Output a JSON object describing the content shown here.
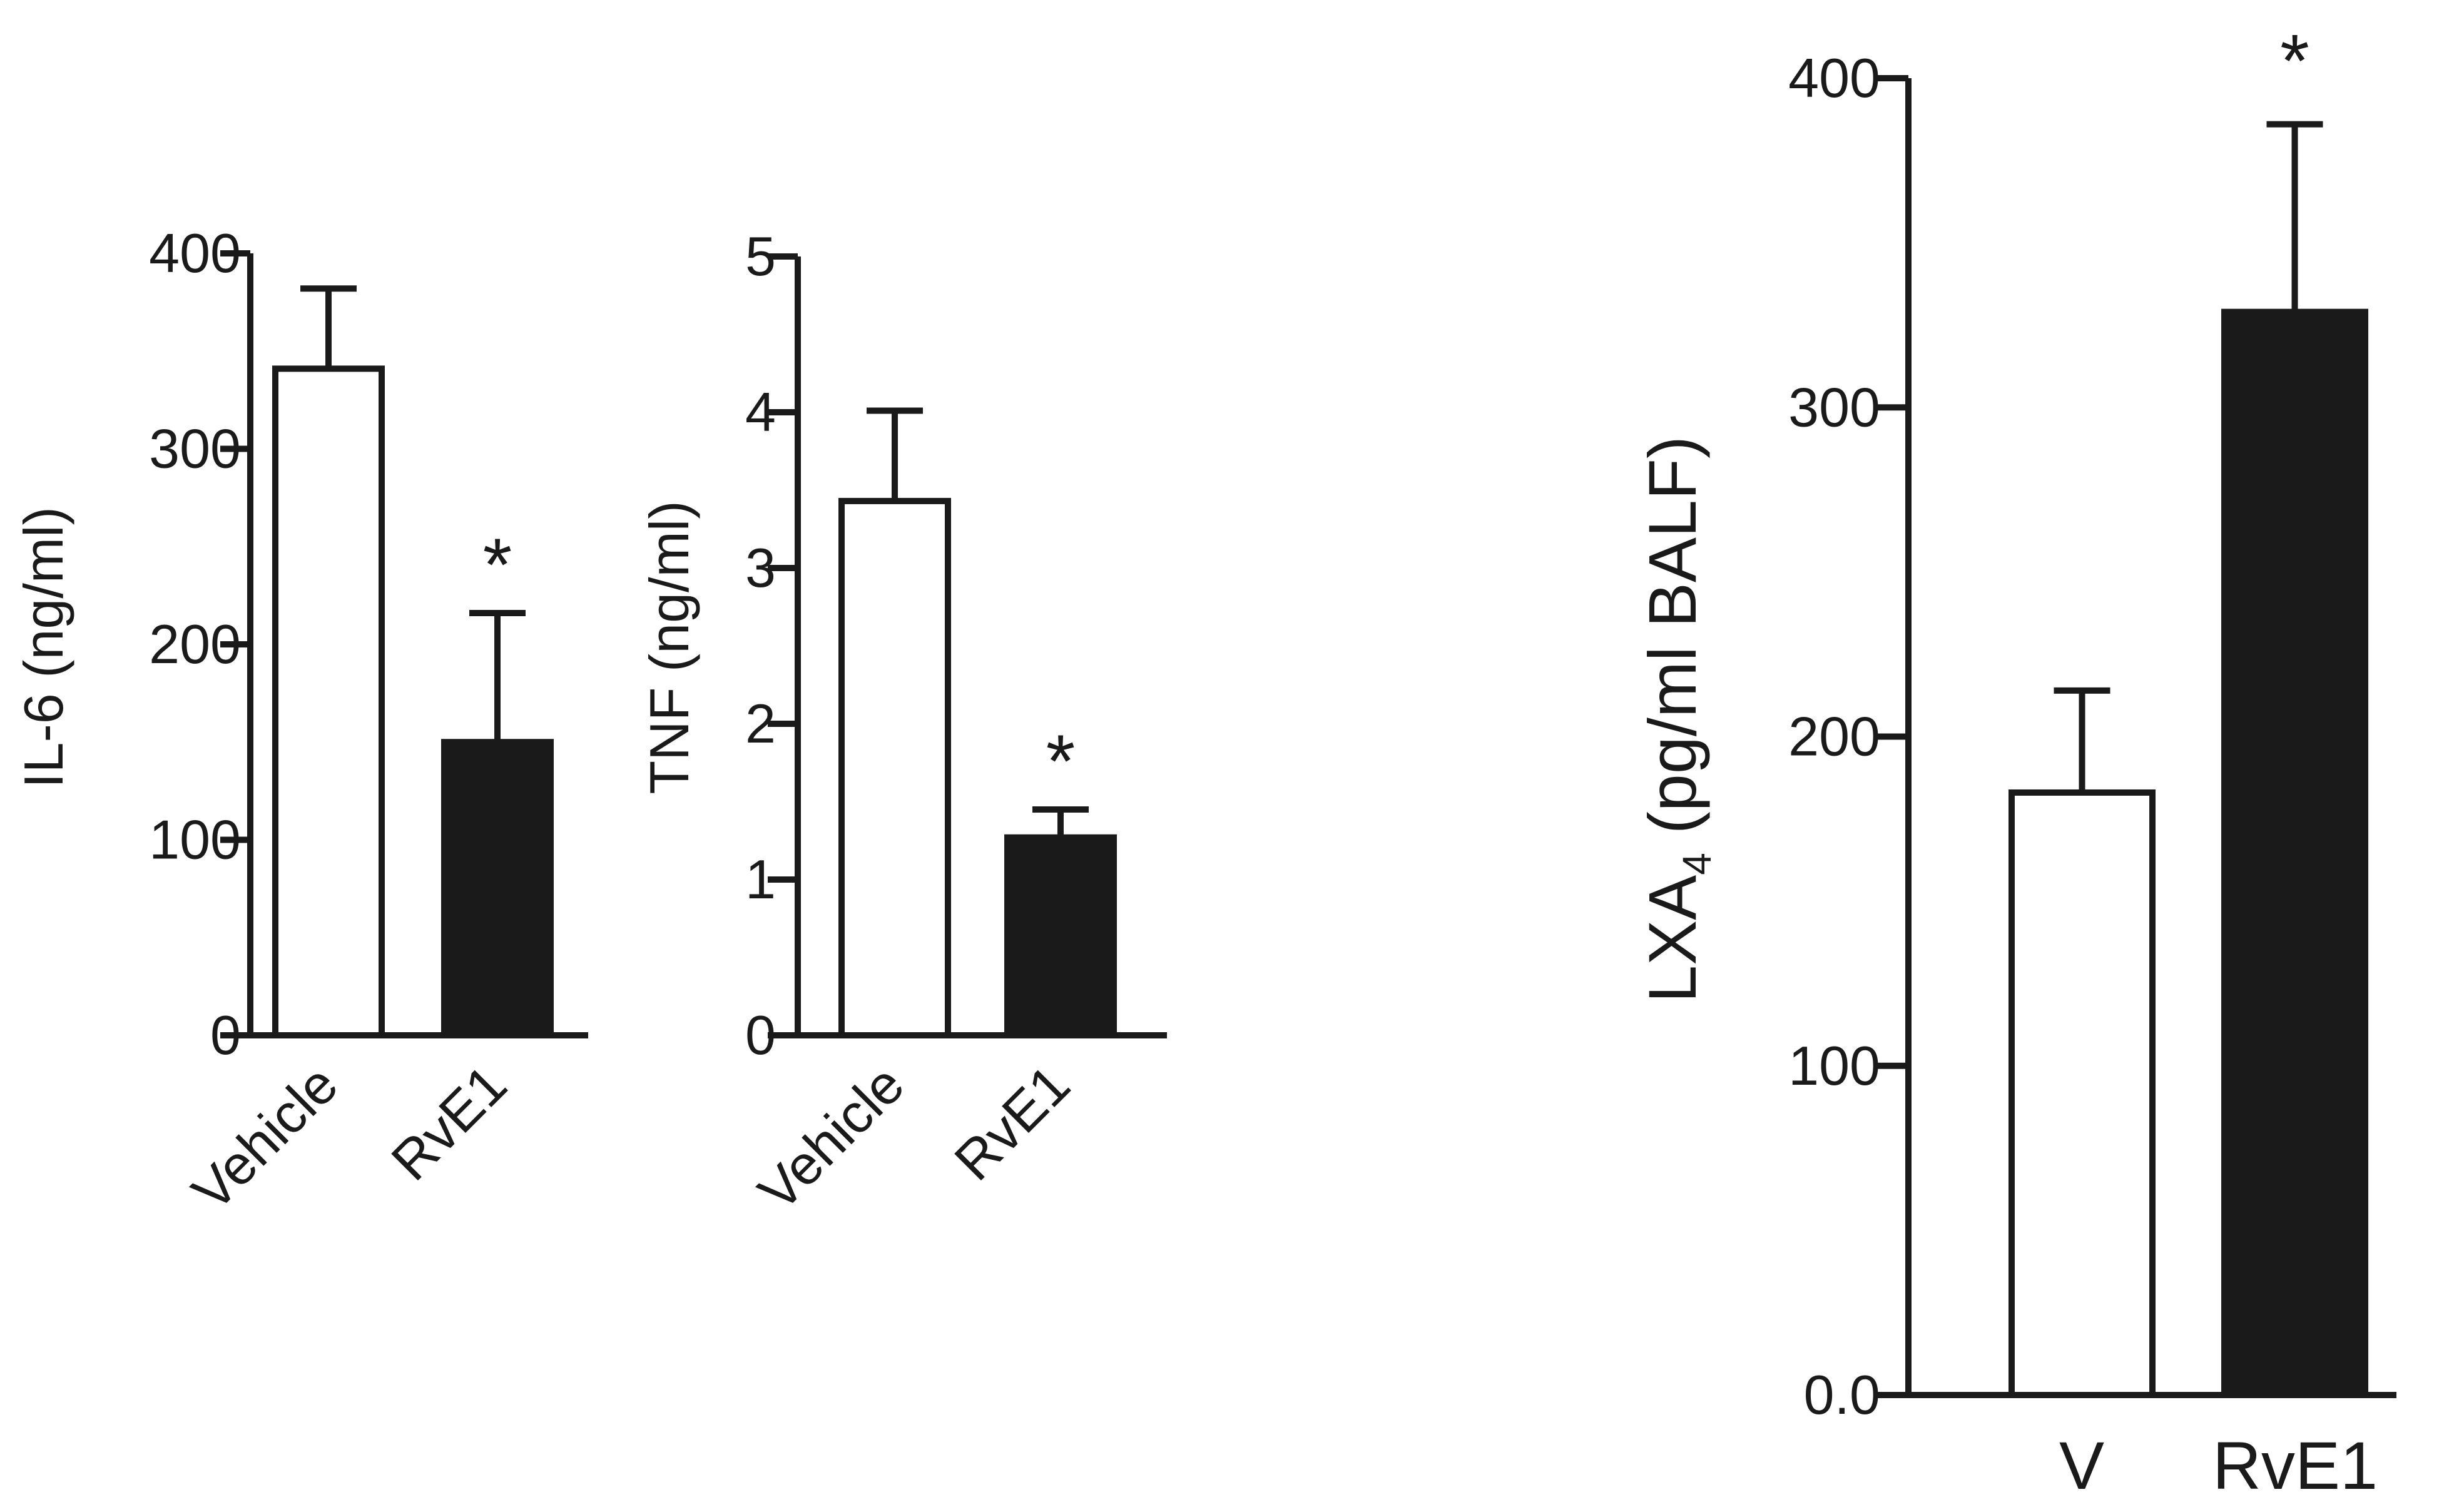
{
  "chart_data": [
    {
      "type": "bar",
      "ylabel": "IL-6 (ng/ml)",
      "categories": [
        "Vehicle",
        "RvE1"
      ],
      "values": [
        341,
        150
      ],
      "errors": [
        41,
        66
      ],
      "bar_colors": [
        "#ffffff",
        "#1a1a1a"
      ],
      "significance": [
        "",
        "*"
      ],
      "ylim": [
        0,
        400
      ],
      "yticks": [
        0,
        100,
        200,
        300,
        400
      ],
      "ytick_labels": [
        "0",
        "100",
        "200",
        "300",
        "400"
      ],
      "x_label_rotation": "-45deg"
    },
    {
      "type": "bar",
      "ylabel": "TNF (ng/ml)",
      "categories": [
        "Vehicle",
        "RvE1"
      ],
      "values": [
        3.43,
        1.27
      ],
      "errors": [
        0.58,
        0.18
      ],
      "bar_colors": [
        "#ffffff",
        "#1a1a1a"
      ],
      "significance": [
        "",
        "*"
      ],
      "ylim": [
        0,
        5
      ],
      "yticks": [
        0,
        1,
        2,
        3,
        4,
        5
      ],
      "ytick_labels": [
        "0",
        "1",
        "2",
        "3",
        "4",
        "5"
      ],
      "x_label_rotation": "-45deg"
    },
    {
      "type": "bar",
      "ylabel": "LXA",
      "ylabel_subscript": "4",
      "ylabel_suffix": " (pg/ml BALF)",
      "categories": [
        "V",
        "RvE1"
      ],
      "values": [
        183,
        329
      ],
      "errors": [
        31,
        57
      ],
      "bar_colors": [
        "#ffffff",
        "#1a1a1a"
      ],
      "significance": [
        "",
        "*"
      ],
      "ylim": [
        0,
        400
      ],
      "yticks": [
        0,
        100,
        200,
        300,
        400
      ],
      "ytick_labels": [
        "0.0",
        "100",
        "200",
        "300",
        "400"
      ],
      "x_label_rotation": "0deg"
    }
  ],
  "colors": {
    "ink": "#1a1a1a",
    "background": "#ffffff"
  }
}
